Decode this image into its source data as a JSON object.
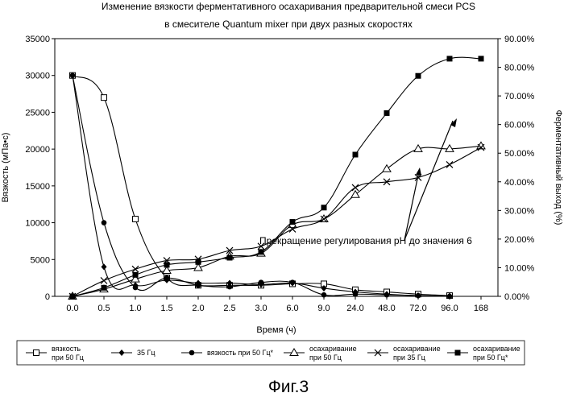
{
  "chart_data": {
    "type": "line",
    "title_line1": "Изменение вязкости ферментативного осахаривания предварительной смеси PCS",
    "title_line2": "в смесителе Quantum mixer при двух разных скоростях",
    "xlabel": "Время (ч)",
    "ylabel_left": "Вязкость (мПа•с)",
    "ylabel_right": "Ферментативный выход (%)",
    "categories": [
      "0.0",
      "0.5",
      "1.0",
      "1.5",
      "2.0",
      "2.5",
      "3.0",
      "6.0",
      "9.0",
      "24.0",
      "48.0",
      "72.0",
      "96.0",
      "168"
    ],
    "y_left": {
      "min": 0,
      "max": 35000,
      "ticks": [
        "0",
        "5000",
        "10000",
        "15000",
        "20000",
        "25000",
        "30000",
        "35000"
      ]
    },
    "y_right": {
      "min": 0,
      "max": 90,
      "ticks": [
        "0.00%",
        "10.00%",
        "20.00%",
        "30.00%",
        "40.00%",
        "50.00%",
        "60.00%",
        "70.00%",
        "80.00%",
        "90.00%"
      ]
    },
    "annotation": "Прекращение регулирования pH до значения 6",
    "series": [
      {
        "name": "вязкость при 50 Гц",
        "axis": "left",
        "marker": "open-square",
        "values": [
          30000,
          27000,
          10500,
          2500,
          1500,
          1500,
          1500,
          1700,
          1700,
          900,
          600,
          300,
          100,
          null
        ]
      },
      {
        "name": "35 Гц",
        "axis": "left",
        "marker": "diamond",
        "values": [
          30000,
          4000,
          1500,
          2200,
          1800,
          1800,
          1600,
          1800,
          1100,
          600,
          300,
          100,
          50,
          null
        ]
      },
      {
        "name": "вязкость при 50 Гц*",
        "axis": "left",
        "marker": "filled-circle",
        "values": [
          30000,
          10000,
          1200,
          2500,
          1500,
          1300,
          1900,
          1900,
          200,
          300,
          200,
          100,
          0,
          null
        ]
      },
      {
        "name": "осахаривание при 50 Гц",
        "axis": "right",
        "marker": "open-triangle",
        "values": [
          0,
          2.5,
          6,
          9,
          10,
          14,
          15,
          25,
          27,
          35.5,
          44.5,
          51.5,
          51.5,
          52.5
        ]
      },
      {
        "name": "осахаривание при 35 Гц",
        "axis": "right",
        "marker": "x",
        "values": [
          0,
          5.5,
          9.5,
          12.5,
          13,
          16,
          17.5,
          23.5,
          27,
          38,
          40,
          41.5,
          46,
          52
        ]
      },
      {
        "name": "осахаривание при 50 Гц*",
        "axis": "right",
        "marker": "filled-square",
        "values": [
          0,
          3,
          7.5,
          11,
          12,
          13.5,
          15.5,
          26,
          31,
          49.5,
          64,
          77,
          83,
          83
        ]
      }
    ],
    "legend": {
      "placement": "bottom",
      "entries": [
        {
          "l1": "вязкость",
          "l2": "при 50 Гц"
        },
        {
          "l1": "35 Гц",
          "l2": ""
        },
        {
          "l1": "вязкость при 50 Гц*",
          "l2": ""
        },
        {
          "l1": "осахаривание",
          "l2": "при 50 Гц"
        },
        {
          "l1": "осахаривание",
          "l2": "при 35 Гц"
        },
        {
          "l1": "осахаривание",
          "l2": "при 50 Гц*"
        }
      ]
    },
    "caption": "Фиг.3"
  }
}
